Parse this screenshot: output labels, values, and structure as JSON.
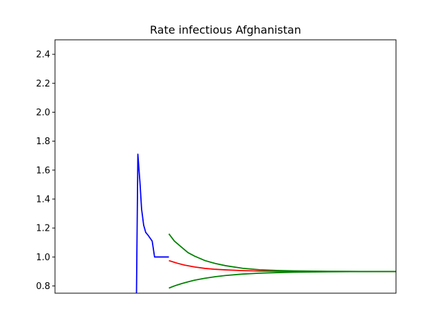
{
  "chart_data": {
    "type": "line",
    "title": "Rate infectious Afghanistan",
    "xlabel": "",
    "ylabel": "",
    "ylim": [
      0.75,
      2.5
    ],
    "xlim": [
      0,
      100
    ],
    "xticks_visible": false,
    "yticks": [
      "0.8",
      "1.0",
      "1.2",
      "1.4",
      "1.6",
      "1.8",
      "2.0",
      "2.2",
      "2.4"
    ],
    "grid": false,
    "legend": "none",
    "series": [
      {
        "color": "#0000ff",
        "x": [
          23.9,
          24.3,
          24.9,
          25.4,
          26.0,
          26.6,
          27.3,
          27.9,
          28.5,
          29.2,
          30.5,
          32.0,
          33.4
        ],
        "y": [
          0.75,
          1.71,
          1.52,
          1.33,
          1.22,
          1.17,
          1.15,
          1.13,
          1.11,
          1.0,
          1.0,
          1.0,
          1.0
        ]
      },
      {
        "color": "#ff0000",
        "x": [
          33.4,
          36,
          38,
          41,
          44,
          47,
          50,
          55,
          60,
          65,
          70,
          80,
          90,
          100
        ],
        "y": [
          0.975,
          0.956,
          0.944,
          0.931,
          0.921,
          0.915,
          0.911,
          0.906,
          0.903,
          0.902,
          0.901,
          0.9,
          0.9,
          0.9
        ]
      },
      {
        "color": "#008000",
        "x": [
          33.4,
          35,
          37,
          39,
          41,
          44,
          47,
          50,
          55,
          60,
          65,
          70,
          80,
          90,
          100
        ],
        "y": [
          1.16,
          1.11,
          1.07,
          1.03,
          1.005,
          0.975,
          0.955,
          0.94,
          0.922,
          0.912,
          0.907,
          0.904,
          0.901,
          0.9,
          0.9
        ]
      },
      {
        "color": "#008000",
        "x": [
          33.4,
          35,
          37,
          39,
          41,
          44,
          47,
          50,
          55,
          60,
          65,
          70,
          80,
          90,
          100
        ],
        "y": [
          0.785,
          0.8,
          0.815,
          0.828,
          0.84,
          0.853,
          0.864,
          0.872,
          0.882,
          0.888,
          0.892,
          0.895,
          0.898,
          0.899,
          0.9
        ]
      }
    ]
  }
}
